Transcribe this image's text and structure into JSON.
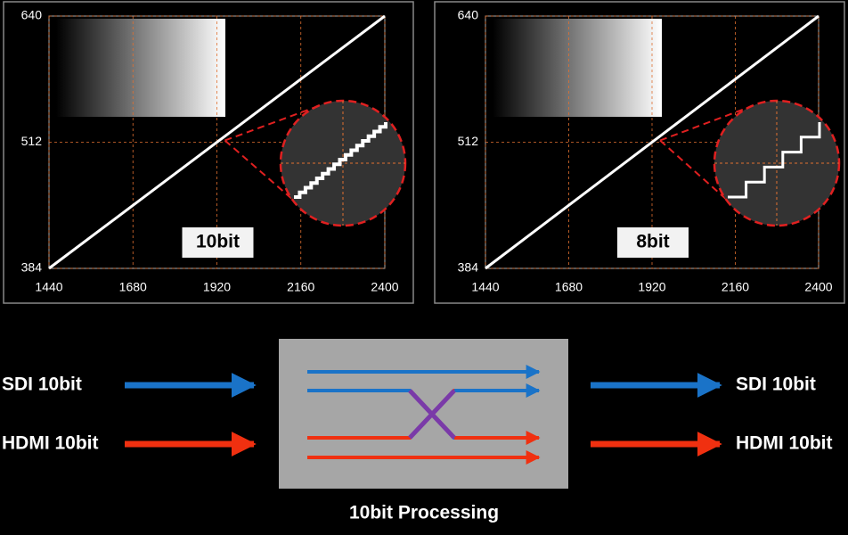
{
  "chart_data": [
    {
      "type": "line",
      "annotation": "10bit",
      "x": [
        1440,
        2400
      ],
      "values": [
        384,
        640
      ],
      "color": "#ffffff",
      "xlim": [
        1440,
        2400
      ],
      "ylim": [
        384,
        640
      ],
      "xticks": [
        1440,
        1680,
        1920,
        2160,
        2400
      ],
      "yticks": [
        384,
        512,
        640
      ],
      "grid": true
    },
    {
      "type": "line",
      "annotation": "8bit",
      "x": [
        1440,
        2400
      ],
      "values": [
        384,
        640
      ],
      "color": "#ffffff",
      "xlim": [
        1440,
        2400
      ],
      "ylim": [
        384,
        640
      ],
      "xticks": [
        1440,
        1680,
        1920,
        2160,
        2400
      ],
      "yticks": [
        384,
        512,
        640
      ],
      "grid": true
    }
  ],
  "diagram": {
    "inputs": [
      "SDI 10bit",
      "HDMI 10bit"
    ],
    "outputs": [
      "SDI 10bit",
      "HDMI 10bit"
    ],
    "caption": "10bit Processing"
  }
}
